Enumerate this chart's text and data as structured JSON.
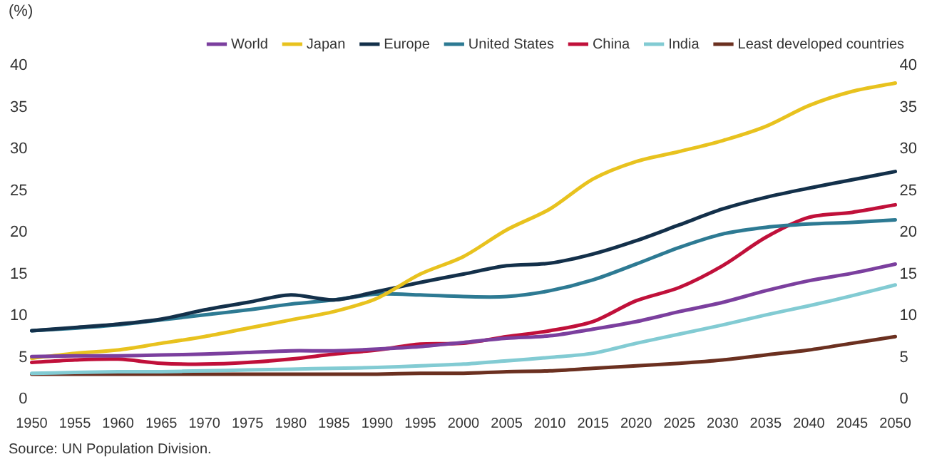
{
  "chart_data": {
    "type": "line",
    "ylabel": "(%)",
    "annotations": [
      "Source: UN Population Division."
    ],
    "categories": [
      "1950",
      "1955",
      "1960",
      "1965",
      "1970",
      "1975",
      "1980",
      "1985",
      "1990",
      "1995",
      "2000",
      "2005",
      "2010",
      "2015",
      "2020",
      "2025",
      "2030",
      "2035",
      "2040",
      "2045",
      "2050"
    ],
    "series": [
      {
        "name": "World",
        "color": "#7b3f9e",
        "values": [
          5.1,
          5.2,
          5.2,
          5.3,
          5.4,
          5.6,
          5.8,
          5.8,
          6.0,
          6.3,
          6.8,
          7.3,
          7.6,
          8.4,
          9.3,
          10.5,
          11.6,
          13.0,
          14.2,
          15.1,
          16.2
        ]
      },
      {
        "name": "Japan",
        "color": "#e8c21e",
        "values": [
          4.9,
          5.5,
          5.9,
          6.7,
          7.5,
          8.5,
          9.5,
          10.5,
          12.1,
          15.0,
          17.1,
          20.3,
          22.8,
          26.4,
          28.5,
          29.7,
          31.0,
          32.7,
          35.2,
          36.9,
          37.9
        ]
      },
      {
        "name": "Europe",
        "color": "#13304a",
        "values": [
          8.2,
          8.6,
          9.0,
          9.6,
          10.7,
          11.6,
          12.5,
          11.9,
          12.9,
          14.0,
          15.0,
          16.0,
          16.3,
          17.4,
          19.0,
          20.9,
          22.8,
          24.2,
          25.3,
          26.3,
          27.3
        ]
      },
      {
        "name": "United States",
        "color": "#2d7a93",
        "values": [
          8.2,
          8.5,
          8.9,
          9.5,
          10.1,
          10.7,
          11.4,
          11.9,
          12.6,
          12.5,
          12.3,
          12.3,
          13.0,
          14.3,
          16.2,
          18.2,
          19.8,
          20.6,
          21.0,
          21.2,
          21.5
        ]
      },
      {
        "name": "China",
        "color": "#c0103a",
        "values": [
          4.4,
          4.7,
          4.8,
          4.3,
          4.2,
          4.4,
          4.8,
          5.4,
          5.9,
          6.6,
          6.7,
          7.5,
          8.2,
          9.3,
          11.8,
          13.4,
          16.0,
          19.4,
          21.8,
          22.4,
          23.3
        ]
      },
      {
        "name": "India",
        "color": "#82cbd3",
        "values": [
          3.1,
          3.2,
          3.3,
          3.3,
          3.4,
          3.5,
          3.6,
          3.7,
          3.8,
          4.0,
          4.2,
          4.6,
          5.0,
          5.5,
          6.7,
          7.8,
          8.9,
          10.1,
          11.2,
          12.4,
          13.7
        ]
      },
      {
        "name": "Least developed countries",
        "color": "#6b3020",
        "values": [
          3.0,
          3.0,
          3.0,
          3.0,
          3.0,
          3.0,
          3.0,
          3.0,
          3.0,
          3.1,
          3.1,
          3.3,
          3.4,
          3.7,
          4.0,
          4.3,
          4.7,
          5.3,
          5.9,
          6.7,
          7.5
        ]
      }
    ],
    "ylim": [
      0,
      40
    ],
    "yticks": [
      0,
      5,
      10,
      15,
      20,
      25,
      30,
      35,
      40
    ],
    "y2lim": [
      0,
      40
    ],
    "y2ticks": [
      0,
      5,
      10,
      15,
      20,
      25,
      30,
      35,
      40
    ],
    "grid": false,
    "legend": "top right",
    "marker": "none",
    "line_style": "solid"
  }
}
